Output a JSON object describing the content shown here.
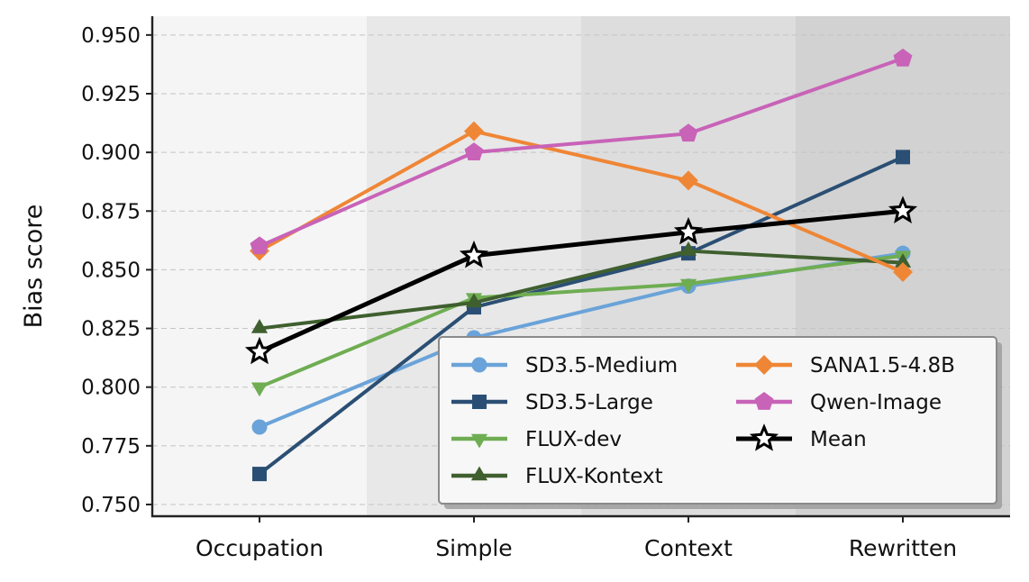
{
  "chart_data": {
    "type": "line",
    "title": "",
    "xlabel": "",
    "ylabel": "Bias score",
    "categories": [
      "Occupation",
      "Simple",
      "Context",
      "Rewritten"
    ],
    "ylim": [
      0.745,
      0.958
    ],
    "yticks": [
      "0.750",
      "0.775",
      "0.800",
      "0.825",
      "0.850",
      "0.875",
      "0.900",
      "0.925",
      "0.950"
    ],
    "grid": "y-dashed",
    "background_bands": [
      "#f5f5f5",
      "#e8e8e8",
      "#dddddd",
      "#d2d2d2"
    ],
    "legend_position": "lower-right",
    "series": [
      {
        "name": "SD3.5-Medium",
        "color": "#6aa3d9",
        "marker": "circle",
        "values": [
          0.783,
          0.821,
          0.843,
          0.857
        ]
      },
      {
        "name": "SD3.5-Large",
        "color": "#2b4f74",
        "marker": "square",
        "values": [
          0.763,
          0.834,
          0.857,
          0.898
        ]
      },
      {
        "name": "FLUX-dev",
        "color": "#6fad52",
        "marker": "triangle-down",
        "values": [
          0.8,
          0.838,
          0.844,
          0.856
        ]
      },
      {
        "name": "FLUX-Kontext",
        "color": "#3f5f2f",
        "marker": "triangle-up",
        "values": [
          0.825,
          0.836,
          0.858,
          0.853
        ]
      },
      {
        "name": "SANA1.5-4.8B",
        "color": "#ef8636",
        "marker": "diamond",
        "values": [
          0.858,
          0.909,
          0.888,
          0.849
        ]
      },
      {
        "name": "Qwen-Image",
        "color": "#c863b8",
        "marker": "pentagon",
        "values": [
          0.86,
          0.9,
          0.908,
          0.94
        ]
      },
      {
        "name": "Mean",
        "color": "#000000",
        "marker": "star",
        "values": [
          0.815,
          0.856,
          0.866,
          0.875
        ]
      }
    ]
  }
}
